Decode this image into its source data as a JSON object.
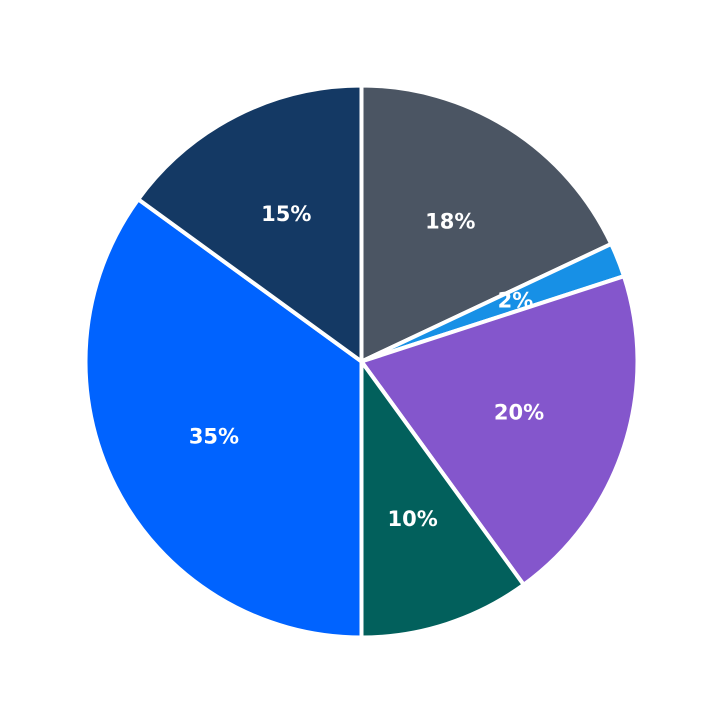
{
  "chart_data": {
    "type": "pie",
    "title": "",
    "start_angle_deg": 90,
    "direction": "clockwise",
    "slices": [
      {
        "value": 18,
        "label": "18%",
        "color": "#4b5563"
      },
      {
        "value": 2,
        "label": "2%",
        "color": "#1790e6"
      },
      {
        "value": 20,
        "label": "20%",
        "color": "#8456cc"
      },
      {
        "value": 10,
        "label": "10%",
        "color": "#02605c"
      },
      {
        "value": 35,
        "label": "35%",
        "color": "#0063ff"
      },
      {
        "value": 15,
        "label": "15%",
        "color": "#143964"
      }
    ]
  }
}
